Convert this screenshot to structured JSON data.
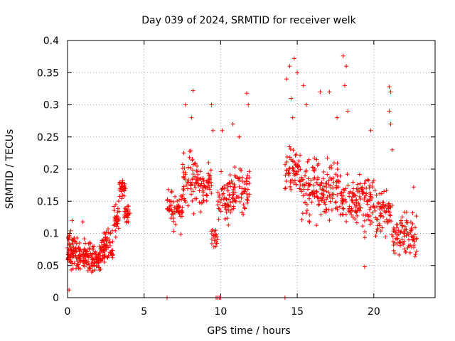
{
  "chart_data": {
    "type": "scatter",
    "title": "Day 039 of 2024, SRMTID for receiver welk",
    "xlabel": "GPS time / hours",
    "ylabel": "SRMTID / TECUs",
    "xlim": [
      0,
      24
    ],
    "ylim": [
      0,
      0.4
    ],
    "x_ticks": [
      0,
      5,
      10,
      15,
      20
    ],
    "x_tick_labels": [
      "0",
      "5",
      "10",
      "15",
      "20"
    ],
    "y_ticks": [
      0,
      0.05,
      0.1,
      0.15,
      0.2,
      0.25,
      0.3,
      0.35,
      0.4
    ],
    "y_tick_labels": [
      "0",
      "0.05",
      "0.1",
      "0.15",
      "0.2",
      "0.25",
      "0.3",
      "0.35",
      "0.4"
    ],
    "grid": true,
    "marker": "plus",
    "color": "#ff0000",
    "series": [
      {
        "name": "SRMTID",
        "clusters": [
          {
            "x": [
              0.0,
              0.6
            ],
            "y": [
              0.03,
              0.11
            ],
            "n": 70
          },
          {
            "x": [
              0.6,
              1.4
            ],
            "y": [
              0.03,
              0.1
            ],
            "n": 70
          },
          {
            "x": [
              1.4,
              2.2
            ],
            "y": [
              0.03,
              0.09
            ],
            "n": 70
          },
          {
            "x": [
              2.2,
              3.0
            ],
            "y": [
              0.05,
              0.11
            ],
            "n": 70
          },
          {
            "x": [
              3.0,
              3.4
            ],
            "y": [
              0.08,
              0.16
            ],
            "n": 30
          },
          {
            "x": [
              3.4,
              3.8
            ],
            "y": [
              0.15,
              0.19
            ],
            "n": 30
          },
          {
            "x": [
              3.7,
              4.1
            ],
            "y": [
              0.11,
              0.15
            ],
            "n": 25
          },
          {
            "x": [
              6.5,
              7.5
            ],
            "y": [
              0.09,
              0.18
            ],
            "n": 60
          },
          {
            "x": [
              7.5,
              8.5
            ],
            "y": [
              0.12,
              0.24
            ],
            "n": 60
          },
          {
            "x": [
              8.5,
              9.4
            ],
            "y": [
              0.13,
              0.22
            ],
            "n": 55
          },
          {
            "x": [
              9.4,
              9.8
            ],
            "y": [
              0.06,
              0.12
            ],
            "n": 20
          },
          {
            "x": [
              9.8,
              10.8
            ],
            "y": [
              0.1,
              0.21
            ],
            "n": 60
          },
          {
            "x": [
              10.8,
              11.9
            ],
            "y": [
              0.12,
              0.22
            ],
            "n": 60
          },
          {
            "x": [
              14.2,
              15.2
            ],
            "y": [
              0.16,
              0.24
            ],
            "n": 60
          },
          {
            "x": [
              15.2,
              16.5
            ],
            "y": [
              0.1,
              0.24
            ],
            "n": 80
          },
          {
            "x": [
              16.5,
              17.8
            ],
            "y": [
              0.11,
              0.23
            ],
            "n": 80
          },
          {
            "x": [
              17.8,
              19.0
            ],
            "y": [
              0.1,
              0.2
            ],
            "n": 70
          },
          {
            "x": [
              19.0,
              20.2
            ],
            "y": [
              0.08,
              0.21
            ],
            "n": 70
          },
          {
            "x": [
              20.2,
              21.2
            ],
            "y": [
              0.08,
              0.18
            ],
            "n": 55
          },
          {
            "x": [
              21.2,
              22.0
            ],
            "y": [
              0.06,
              0.14
            ],
            "n": 45
          },
          {
            "x": [
              22.0,
              22.8
            ],
            "y": [
              0.04,
              0.16
            ],
            "n": 45
          }
        ],
        "points": [
          [
            0.1,
            0.012
          ],
          [
            0.3,
            0.12
          ],
          [
            1.0,
            0.118
          ],
          [
            7.7,
            0.3
          ],
          [
            8.2,
            0.322
          ],
          [
            8.1,
            0.28
          ],
          [
            9.4,
            0.3
          ],
          [
            9.5,
            0.26
          ],
          [
            10.1,
            0.26
          ],
          [
            10.8,
            0.27
          ],
          [
            11.2,
            0.25
          ],
          [
            11.7,
            0.318
          ],
          [
            11.8,
            0.3
          ],
          [
            14.3,
            0.34
          ],
          [
            14.5,
            0.36
          ],
          [
            14.8,
            0.372
          ],
          [
            15.0,
            0.35
          ],
          [
            14.6,
            0.31
          ],
          [
            14.7,
            0.28
          ],
          [
            15.4,
            0.33
          ],
          [
            15.6,
            0.3
          ],
          [
            16.5,
            0.32
          ],
          [
            17.1,
            0.32
          ],
          [
            18.0,
            0.376
          ],
          [
            18.2,
            0.36
          ],
          [
            18.1,
            0.33
          ],
          [
            18.3,
            0.29
          ],
          [
            17.6,
            0.28
          ],
          [
            19.8,
            0.26
          ],
          [
            21.0,
            0.328
          ],
          [
            21.1,
            0.32
          ],
          [
            21.0,
            0.29
          ],
          [
            21.1,
            0.27
          ],
          [
            19.4,
            0.048
          ],
          [
            21.2,
            0.23
          ],
          [
            22.6,
            0.172
          ],
          [
            6.5,
            0.0
          ],
          [
            9.7,
            0.0
          ],
          [
            9.8,
            0.0
          ],
          [
            9.9,
            0.0
          ],
          [
            10.0,
            0.0
          ],
          [
            14.2,
            0.0
          ]
        ]
      }
    ]
  }
}
